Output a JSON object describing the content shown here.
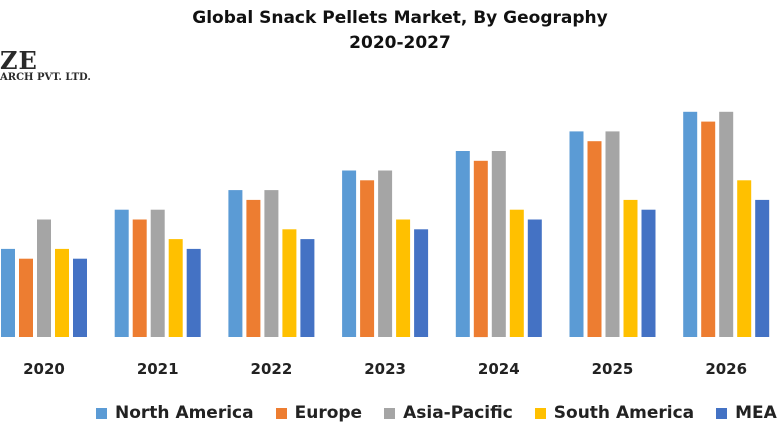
{
  "chart_data": {
    "type": "bar",
    "title": "Global Snack Pellets Market, By Geography",
    "subtitle": "2020-2027",
    "categories": [
      "2020",
      "2021",
      "2022",
      "2023",
      "2024",
      "2025",
      "2026"
    ],
    "series": [
      {
        "name": "North America",
        "color": "#5B9BD5",
        "values": [
          4.5,
          6.5,
          7.5,
          8.5,
          9.5,
          10.5,
          11.5
        ]
      },
      {
        "name": "Europe",
        "color": "#ED7D31",
        "values": [
          4.0,
          6.0,
          7.0,
          8.0,
          9.0,
          10.0,
          11.0
        ]
      },
      {
        "name": "Asia-Pacific",
        "color": "#A5A5A5",
        "values": [
          6.0,
          6.5,
          7.5,
          8.5,
          9.5,
          10.5,
          11.5
        ]
      },
      {
        "name": "South America",
        "color": "#FFC000",
        "values": [
          4.5,
          5.0,
          5.5,
          6.0,
          6.5,
          7.0,
          8.0
        ]
      },
      {
        "name": "MEA",
        "color": "#4472C4",
        "values": [
          4.0,
          4.5,
          5.0,
          5.5,
          6.0,
          6.5,
          7.0
        ]
      }
    ],
    "ylim": [
      0,
      12
    ],
    "grid": false,
    "legend_position": "bottom"
  },
  "watermark": {
    "line1": "ZE",
    "line2": "ARCH PVT. LTD."
  }
}
